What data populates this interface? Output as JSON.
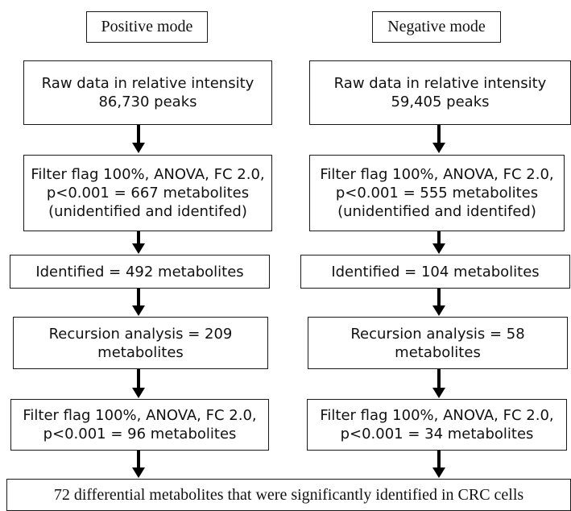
{
  "left": {
    "mode": "Positive mode",
    "raw": [
      "Raw data in relative intensity",
      "86,730 peaks"
    ],
    "filter1": [
      "Filter flag 100%, ANOVA, FC 2.0,",
      "p<0.001 =  667 metabolites",
      "(unidentified and identifed)"
    ],
    "identified": "Identified = 492 metabolites",
    "recursion": [
      "Recursion analysis = 209",
      "metabolites"
    ],
    "filter2": [
      "Filter flag 100%, ANOVA, FC 2.0,",
      "p<0.001 = 96 metabolites"
    ]
  },
  "right": {
    "mode": "Negative mode",
    "raw": [
      "Raw data in relative intensity",
      "59,405 peaks"
    ],
    "filter1": [
      "Filter flag 100%, ANOVA, FC 2.0,",
      "p<0.001 = 555 metabolites",
      "(unidentified and identifed)"
    ],
    "identified": "Identified = 104 metabolites",
    "recursion": [
      "Recursion analysis = 58",
      "metabolites"
    ],
    "filter2": [
      "Filter flag 100%, ANOVA, FC 2.0,",
      "p<0.001 = 34 metabolites"
    ]
  },
  "result": "72 differential metabolites that were significantly identified in CRC cells"
}
